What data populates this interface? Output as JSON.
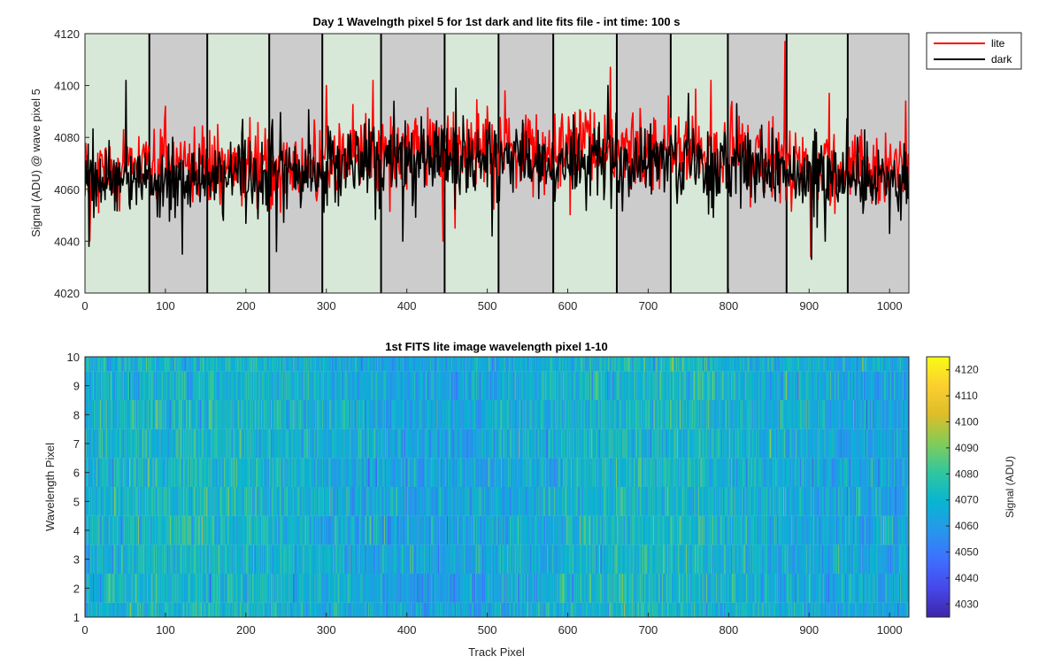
{
  "chart_data": [
    {
      "type": "line",
      "title": "Day 1 Wavelngth pixel 5 for 1st dark and lite fits file - int time: 100 s",
      "xlabel": "",
      "ylabel": "Signal (ADU) @ wave pixel 5",
      "xlim": [
        0,
        1024
      ],
      "ylim": [
        4020,
        4120
      ],
      "x_ticks": [
        0,
        100,
        200,
        300,
        400,
        500,
        600,
        700,
        800,
        900,
        1000
      ],
      "y_ticks": [
        4020,
        4040,
        4060,
        4080,
        4100,
        4120
      ],
      "grid": false,
      "legend_position": "outside top-right",
      "legend": [
        "lite",
        "dark"
      ],
      "background_bands": [
        {
          "x0": 0,
          "x1": 80,
          "color": "#d8e8d8"
        },
        {
          "x0": 80,
          "x1": 152,
          "color": "#cccccc"
        },
        {
          "x0": 152,
          "x1": 229,
          "color": "#d8e8d8"
        },
        {
          "x0": 229,
          "x1": 295,
          "color": "#cccccc"
        },
        {
          "x0": 295,
          "x1": 368,
          "color": "#d8e8d8"
        },
        {
          "x0": 368,
          "x1": 447,
          "color": "#cccccc"
        },
        {
          "x0": 447,
          "x1": 514,
          "color": "#d8e8d8"
        },
        {
          "x0": 514,
          "x1": 582,
          "color": "#cccccc"
        },
        {
          "x0": 582,
          "x1": 661,
          "color": "#d8e8d8"
        },
        {
          "x0": 661,
          "x1": 728,
          "color": "#cccccc"
        },
        {
          "x0": 728,
          "x1": 799,
          "color": "#d8e8d8"
        },
        {
          "x0": 799,
          "x1": 872,
          "color": "#cccccc"
        },
        {
          "x0": 872,
          "x1": 948,
          "color": "#d8e8d8"
        },
        {
          "x0": 948,
          "x1": 1024,
          "color": "#cccccc"
        }
      ],
      "series": [
        {
          "name": "lite",
          "color": "#ff0000",
          "trend_x": [
            0,
            100,
            200,
            250,
            300,
            350,
            400,
            450,
            500,
            550,
            600,
            650,
            700,
            750,
            800,
            850,
            900,
            950,
            1024
          ],
          "trend_y": [
            4067,
            4068,
            4068,
            4069,
            4072,
            4073,
            4074,
            4075,
            4075,
            4074,
            4074,
            4075,
            4076,
            4074,
            4073,
            4072,
            4069,
            4068,
            4067
          ],
          "noise_sd": 7.5,
          "peaks": [
            [
              6,
              4040
            ],
            [
              48,
              4083
            ],
            [
              100,
              4092
            ],
            [
              136,
              4084
            ],
            [
              165,
              4085
            ],
            [
              300,
              4100
            ],
            [
              358,
              4102
            ],
            [
              445,
              4040
            ],
            [
              500,
              4092
            ],
            [
              645,
              4060
            ],
            [
              653,
              4107
            ],
            [
              725,
              4096
            ],
            [
              778,
              4102
            ],
            [
              855,
              4088
            ],
            [
              870,
              4117
            ],
            [
              902,
              4034
            ],
            [
              925,
              4097
            ],
            [
              1020,
              4094
            ]
          ]
        },
        {
          "name": "dark",
          "color": "#000000",
          "trend_x": [
            0,
            100,
            200,
            250,
            300,
            350,
            400,
            450,
            500,
            550,
            600,
            650,
            700,
            750,
            800,
            850,
            900,
            950,
            1024
          ],
          "trend_y": [
            4063,
            4064,
            4065,
            4066,
            4068,
            4070,
            4071,
            4071,
            4071,
            4070,
            4070,
            4071,
            4072,
            4071,
            4070,
            4069,
            4067,
            4066,
            4064
          ],
          "noise_sd": 7.5,
          "peaks": [
            [
              5,
              4038
            ],
            [
              51,
              4102
            ],
            [
              121,
              4035
            ],
            [
              172,
              4048
            ],
            [
              238,
              4036
            ],
            [
              395,
              4040
            ],
            [
              461,
              4099
            ],
            [
              506,
              4042
            ],
            [
              650,
              4100
            ],
            [
              750,
              4097
            ],
            [
              810,
              4093
            ],
            [
              903,
              4033
            ],
            [
              920,
              4040
            ],
            [
              1000,
              4043
            ]
          ]
        }
      ]
    },
    {
      "type": "heatmap",
      "title": "1st FITS lite image wavelength pixel 1-10",
      "xlabel": "Track Pixel",
      "ylabel": "Wavelength Pixel",
      "xlim": [
        0,
        1024
      ],
      "ylim": [
        1,
        10
      ],
      "x_ticks": [
        0,
        100,
        200,
        300,
        400,
        500,
        600,
        700,
        800,
        900,
        1000
      ],
      "y_ticks": [
        1,
        2,
        3,
        4,
        5,
        6,
        7,
        8,
        9,
        10
      ],
      "rows": 10,
      "cols": 1024,
      "value_range": [
        4025,
        4125
      ],
      "typical_mean": 4068,
      "typical_sd": 8,
      "colormap": "parula",
      "colorbar": {
        "label": "Signal (ADU)",
        "ticks": [
          4030,
          4040,
          4050,
          4060,
          4070,
          4080,
          4090,
          4100,
          4110,
          4120
        ]
      }
    }
  ]
}
